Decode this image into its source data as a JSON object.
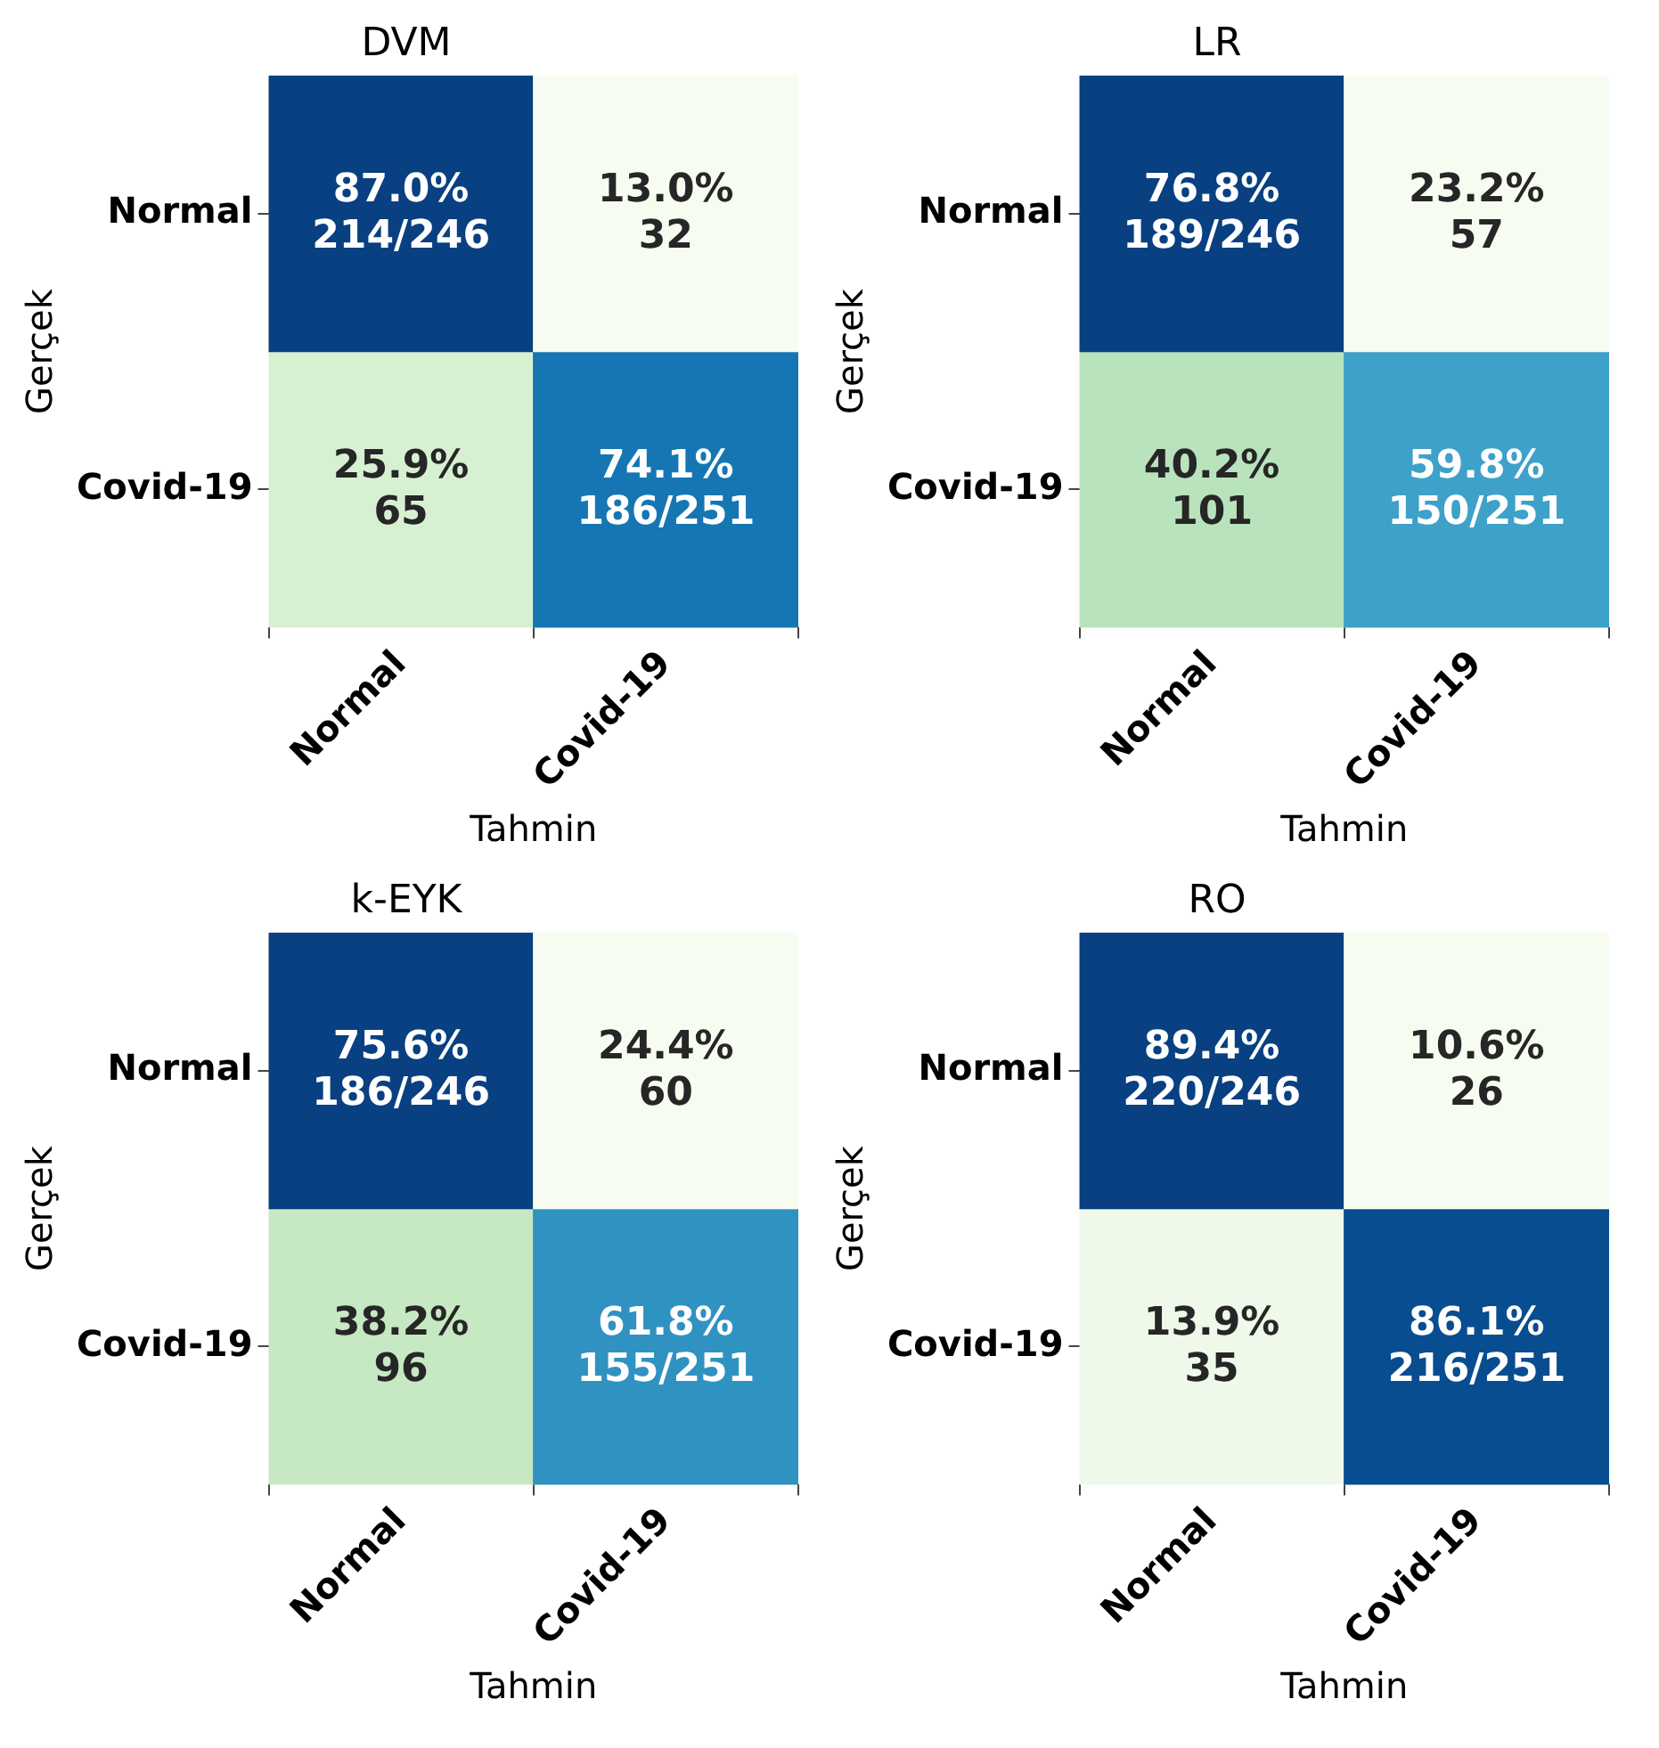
{
  "chart_data": [
    {
      "type": "heatmap",
      "title": "DVM",
      "xlabel": "Tahmin",
      "ylabel": "Gerçek",
      "categories": [
        "Normal",
        "Covid-19"
      ],
      "y_categories": [
        "Normal",
        "Covid-19"
      ],
      "cells": [
        [
          87.0,
          13.0
        ],
        [
          25.9,
          74.1
        ]
      ],
      "cell_labels": [
        [
          "87.0%",
          "13.0%"
        ],
        [
          "25.9%",
          "74.1%"
        ]
      ],
      "annotations": [
        "214/246",
        "32",
        "65",
        "186/251"
      ]
    },
    {
      "type": "heatmap",
      "title": "LR",
      "xlabel": "Tahmin",
      "ylabel": "Gerçek",
      "categories": [
        "Normal",
        "Covid-19"
      ],
      "y_categories": [
        "Normal",
        "Covid-19"
      ],
      "cells": [
        [
          76.8,
          23.2
        ],
        [
          40.2,
          59.8
        ]
      ],
      "cell_labels": [
        [
          "76.8%",
          "23.2%"
        ],
        [
          "40.2%",
          "59.8%"
        ]
      ],
      "annotations": [
        "189/246",
        "57",
        "101",
        "150/251"
      ]
    },
    {
      "type": "heatmap",
      "title": "k-EYK",
      "xlabel": "Tahmin",
      "ylabel": "Gerçek",
      "categories": [
        "Normal",
        "Covid-19"
      ],
      "y_categories": [
        "Normal",
        "Covid-19"
      ],
      "cells": [
        [
          75.6,
          24.4
        ],
        [
          38.2,
          61.8
        ]
      ],
      "cell_labels": [
        [
          "75.6%",
          "24.4%"
        ],
        [
          "38.2%",
          "61.8%"
        ]
      ],
      "annotations": [
        "186/246",
        "60",
        "96",
        "155/251"
      ]
    },
    {
      "type": "heatmap",
      "title": "RO",
      "xlabel": "Tahmin",
      "ylabel": "Gerçek",
      "categories": [
        "Normal",
        "Covid-19"
      ],
      "y_categories": [
        "Normal",
        "Covid-19"
      ],
      "cells": [
        [
          89.4,
          10.6
        ],
        [
          13.9,
          86.1
        ]
      ],
      "cell_labels": [
        [
          "89.4%",
          "10.6%"
        ],
        [
          "13.9%",
          "86.1%"
        ]
      ],
      "annotations": [
        "220/246",
        "26",
        "35",
        "216/251"
      ]
    }
  ]
}
